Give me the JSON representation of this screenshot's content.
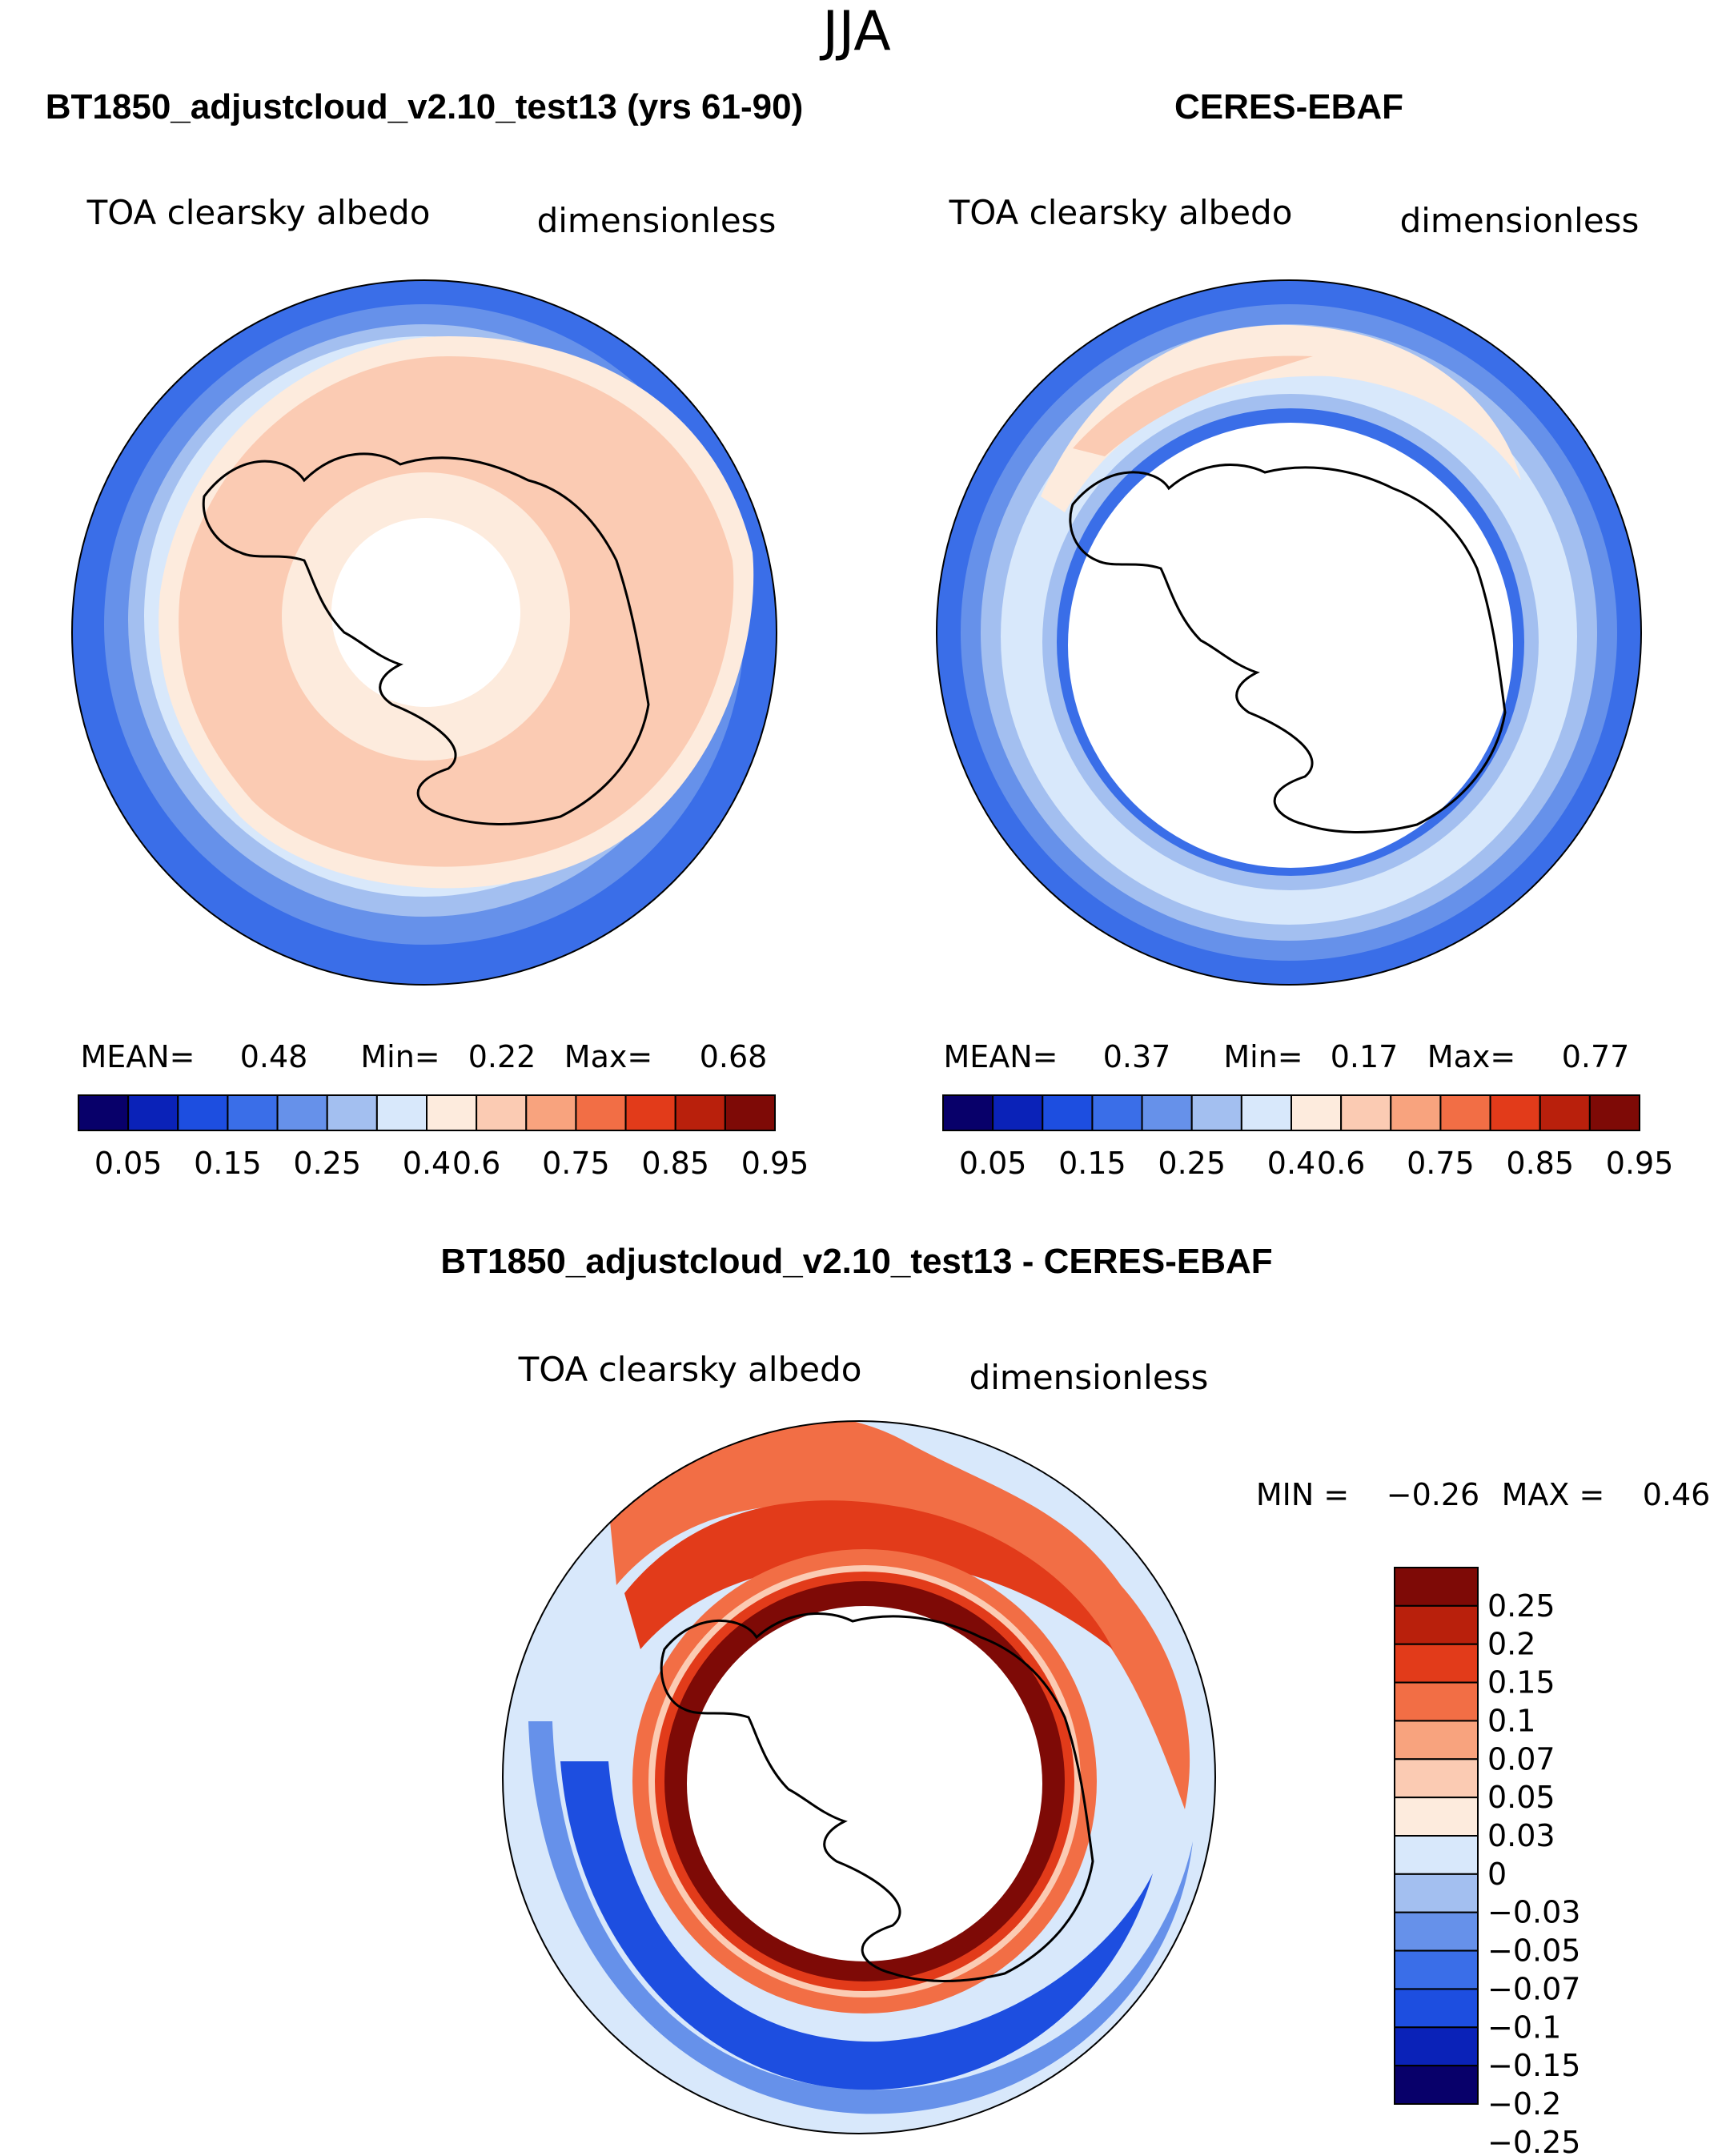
{
  "page": {
    "season": "JJA"
  },
  "chart_data": [
    {
      "type": "contour-map",
      "projection": "south-polar-stereographic",
      "title": "BT1850_adjustcloud_v2.10_test13 (yrs 61-90)",
      "variable": "TOA clearsky albedo",
      "units": "dimensionless",
      "stats": {
        "mean_label": "MEAN=",
        "mean": "0.48",
        "min_label": "Min=",
        "min": "0.22",
        "max_label": "Max=",
        "max": "0.68"
      },
      "colorbar": {
        "orientation": "horizontal",
        "tick_labels": [
          "0.05",
          "0.15",
          "0.25",
          "0.4",
          "0.6",
          "0.75",
          "0.85",
          "0.95"
        ],
        "colors": [
          "#08006a",
          "#0a22b8",
          "#1d4ee0",
          "#3a6ee8",
          "#6691ea",
          "#a3bff0",
          "#d8e8fb",
          "#fdebdd",
          "#fbcbb3",
          "#f8a37e",
          "#f26e45",
          "#e23b1a",
          "#b9200c",
          "#7e0a06"
        ]
      },
      "field": {
        "pole_hole_latitude": "-82",
        "zones": [
          {
            "lat": "-45",
            "value": "0.27"
          },
          {
            "lat": "-50",
            "value": "0.33"
          },
          {
            "lat": "-55",
            "value": "0.38"
          },
          {
            "lat": "-60",
            "value": "0.45"
          },
          {
            "lat": "-65",
            "value": "0.55"
          },
          {
            "lat": "-78",
            "value": "0.62"
          },
          {
            "lat": "-82",
            "value": "0.57"
          }
        ]
      }
    },
    {
      "type": "contour-map",
      "projection": "south-polar-stereographic",
      "title": "CERES-EBAF",
      "variable": "TOA clearsky albedo",
      "units": "dimensionless",
      "stats": {
        "mean_label": "MEAN=",
        "mean": "0.37",
        "min_label": "Min=",
        "min": "0.17",
        "max_label": "Max=",
        "max": "0.77"
      },
      "colorbar": {
        "orientation": "horizontal",
        "tick_labels": [
          "0.05",
          "0.15",
          "0.25",
          "0.4",
          "0.6",
          "0.75",
          "0.85",
          "0.95"
        ],
        "colors": [
          "#08006a",
          "#0a22b8",
          "#1d4ee0",
          "#3a6ee8",
          "#6691ea",
          "#a3bff0",
          "#d8e8fb",
          "#fdebdd",
          "#fbcbb3",
          "#f8a37e",
          "#f26e45",
          "#e23b1a",
          "#b9200c",
          "#7e0a06"
        ]
      },
      "field": {
        "data_hole_latitude": "-68",
        "zones": [
          {
            "lat": "-45",
            "value": "0.32"
          },
          {
            "lat": "-50",
            "value": "0.36"
          },
          {
            "lat": "-55",
            "value": "0.42"
          },
          {
            "lat": "-60",
            "value": "0.50"
          },
          {
            "lat": "-63",
            "value": "0.44"
          },
          {
            "lat": "-66",
            "value": "0.30"
          }
        ]
      }
    },
    {
      "type": "contour-map",
      "projection": "south-polar-stereographic",
      "title": "BT1850_adjustcloud_v2.10_test13 - CERES-EBAF",
      "variable": "TOA clearsky albedo",
      "units": "dimensionless",
      "stats": {
        "min_label": "MIN =",
        "min": "−0.26",
        "max_label": "MAX =",
        "max": "0.46"
      },
      "colorbar": {
        "orientation": "vertical",
        "tick_labels": [
          "0.25",
          "0.2",
          "0.15",
          "0.1",
          "0.07",
          "0.05",
          "0.03",
          "0",
          "−0.03",
          "−0.05",
          "−0.07",
          "−0.1",
          "−0.15",
          "−0.2",
          "−0.25"
        ],
        "colors": [
          "#7e0a06",
          "#b9200c",
          "#e23b1a",
          "#f26e45",
          "#f8a37e",
          "#fbcbb3",
          "#fdebdd",
          "#d8e8fb",
          "#a3bff0",
          "#6691ea",
          "#3a6ee8",
          "#1d4ee0",
          "#0a22b8",
          "#08006a"
        ]
      },
      "field": {
        "data_hole_latitude": "-68",
        "zones": [
          {
            "lat": "-45",
            "value": "-0.02"
          },
          {
            "lat": "-50",
            "value": "-0.04"
          },
          {
            "lat": "-55",
            "value": "-0.08"
          },
          {
            "lat": "-60",
            "value": "-0.10"
          },
          {
            "lat": "-63",
            "value": "0.12"
          },
          {
            "lat": "-66",
            "value": "0.30"
          }
        ]
      }
    }
  ]
}
